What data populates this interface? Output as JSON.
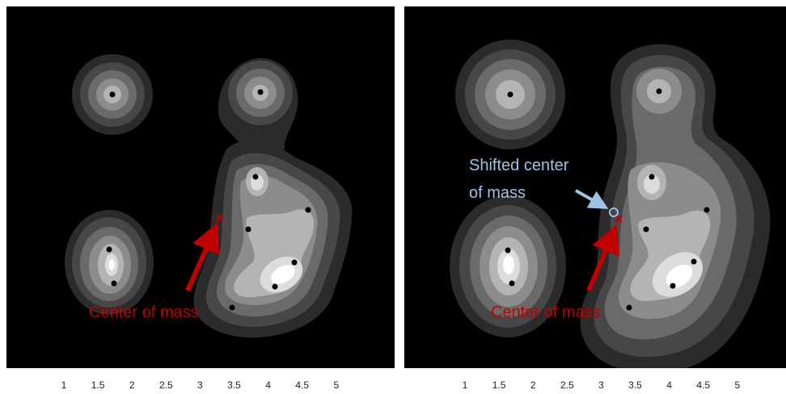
{
  "x_axis": {
    "ticks": [
      "1",
      "1.5",
      "2",
      "2.5",
      "3",
      "3.5",
      "4",
      "4.5",
      "5"
    ]
  },
  "panels": [
    {
      "id": "left",
      "annotations": {
        "center_of_mass": "Center of mass"
      }
    },
    {
      "id": "right",
      "annotations": {
        "center_of_mass": "Center of mass",
        "shifted_line1": "Shifted center",
        "shifted_line2": "of mass"
      }
    }
  ],
  "colors": {
    "background": "#000000",
    "center_mark": "#c00000",
    "shifted_mark": "#9ec3e6"
  }
}
